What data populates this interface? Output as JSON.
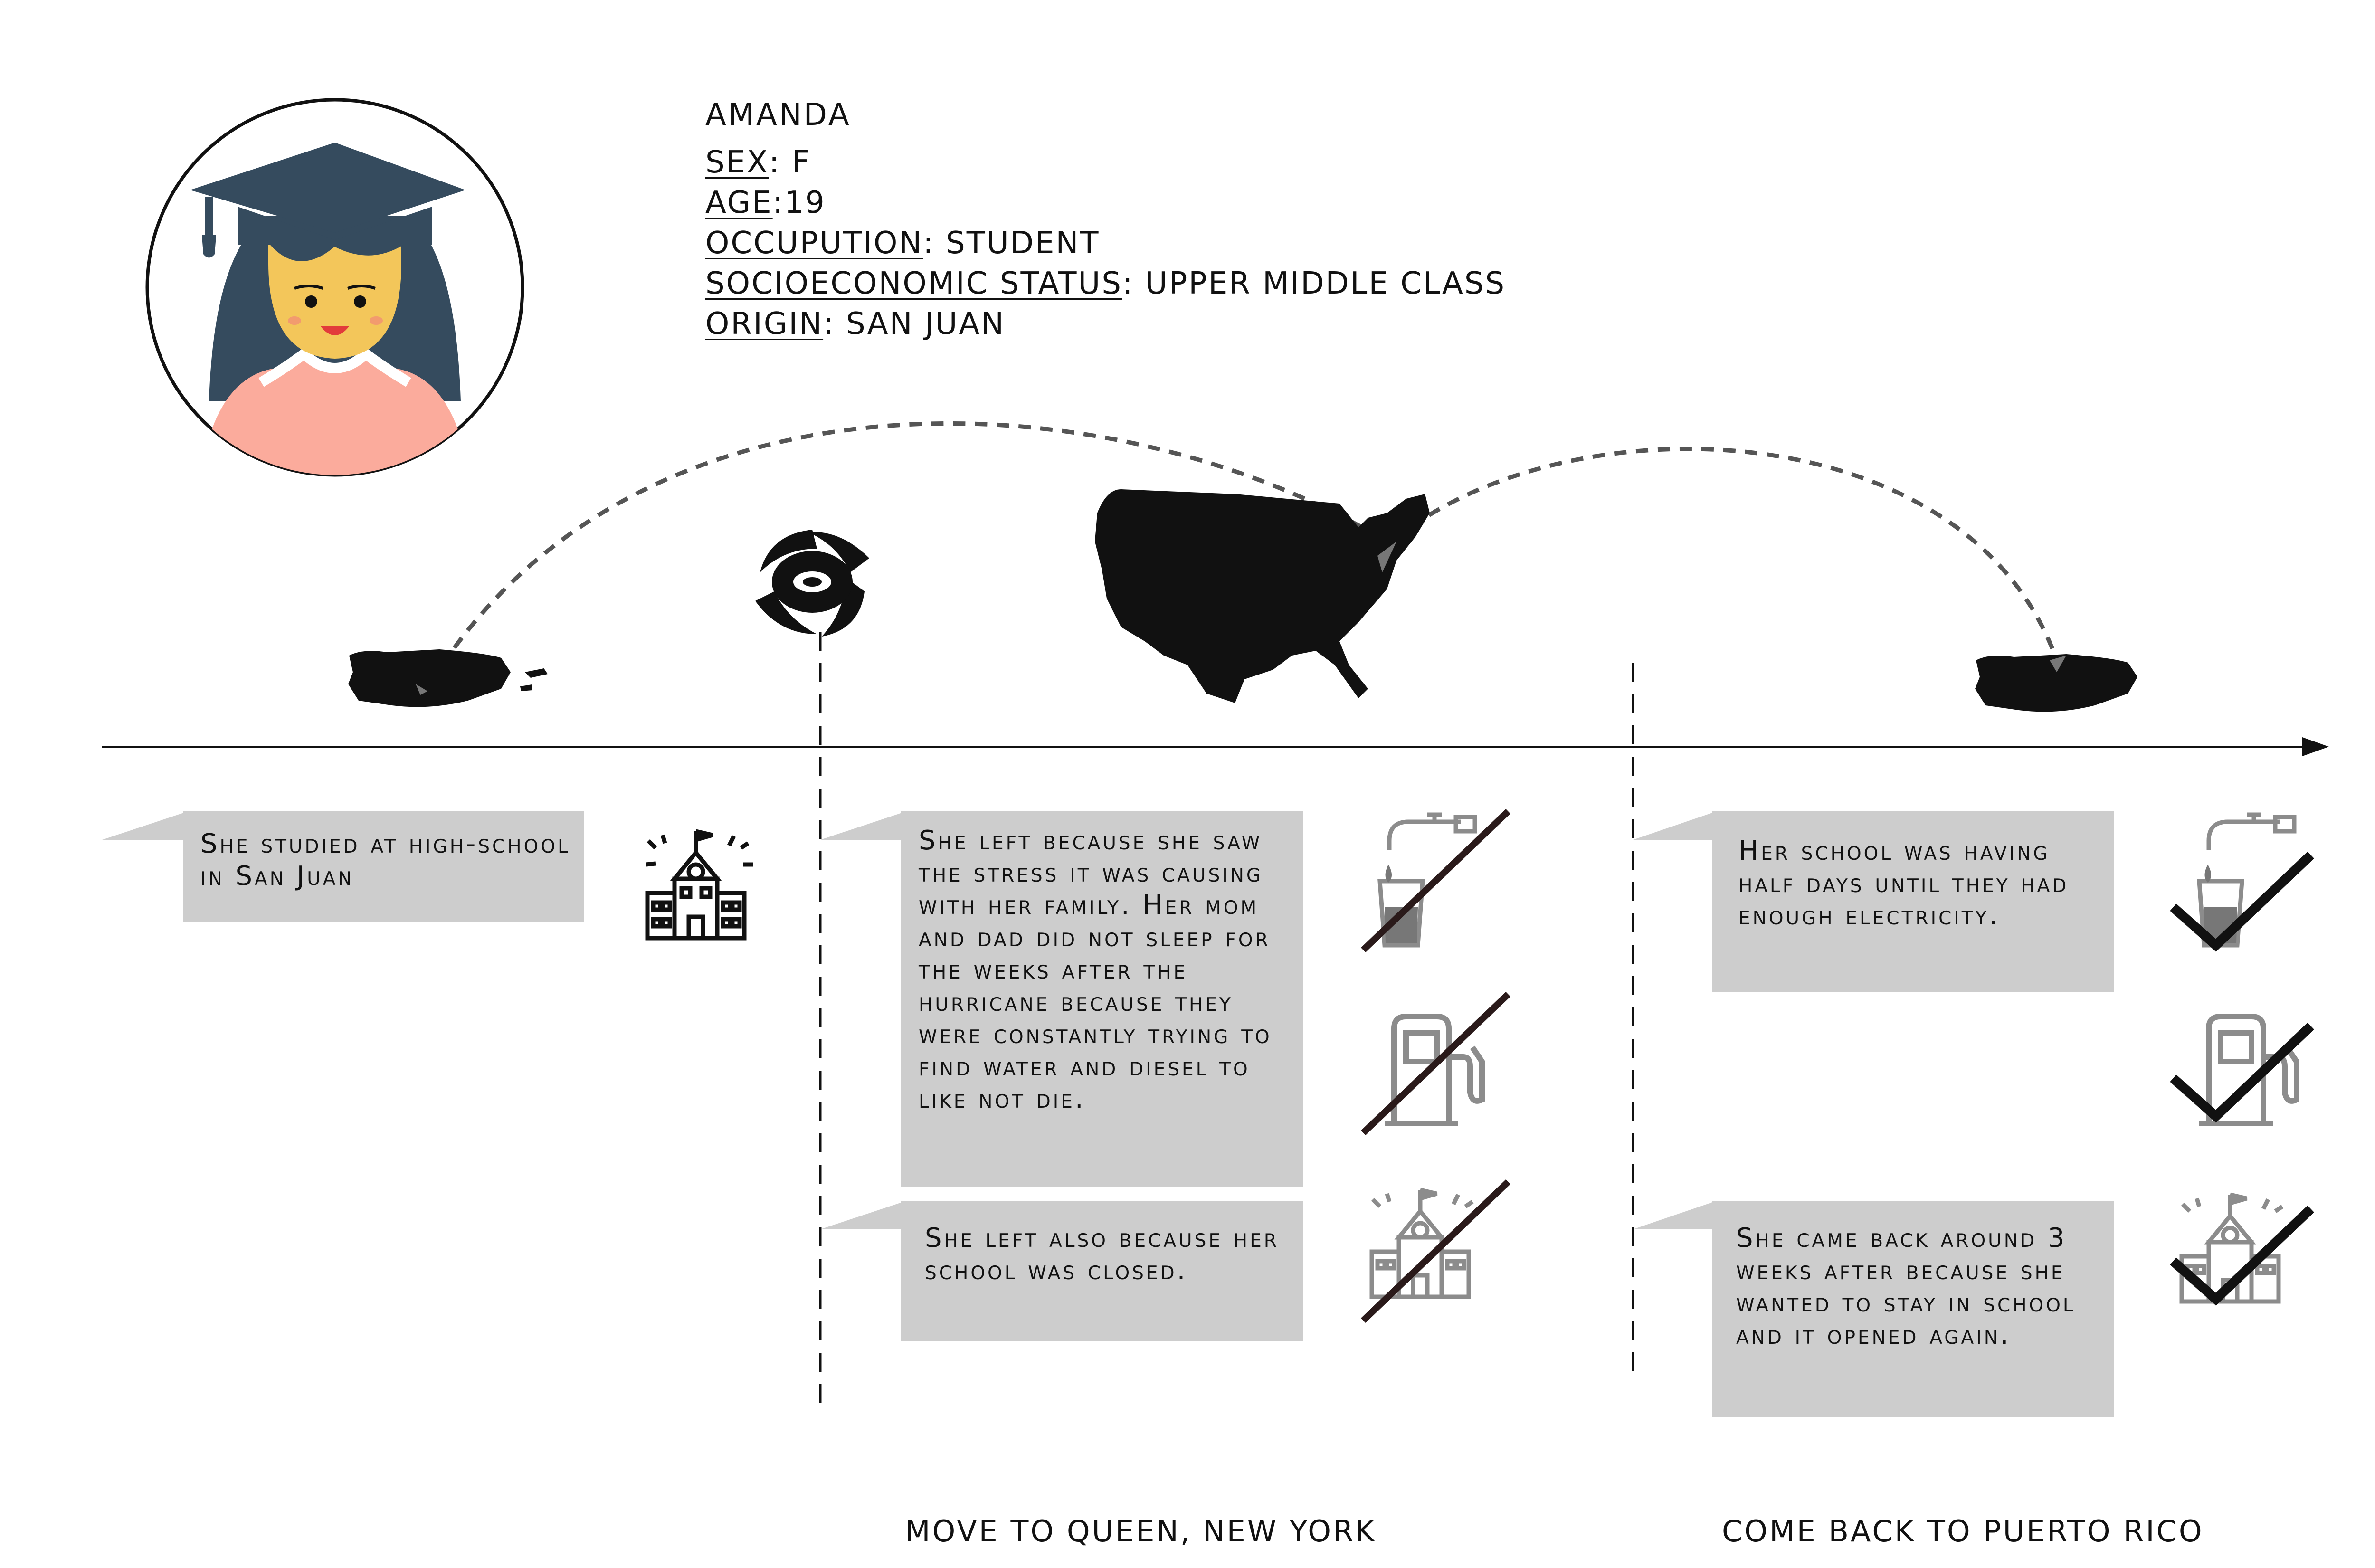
{
  "profile": {
    "name": "AMANDA",
    "fields": [
      {
        "key": "SEX",
        "sep": ": ",
        "value": "F"
      },
      {
        "key": "AGE",
        "sep": ":",
        "value": "19"
      },
      {
        "key": "OCCUPUTION",
        "sep": ": ",
        "value": "STUDENT"
      },
      {
        "key": "SOCIOECONOMIC STATUS",
        "sep": ": ",
        "value": "UPPER MIDDLE CLASS"
      },
      {
        "key": "ORIGIN",
        "sep": ": ",
        "value": "SAN JUAN"
      }
    ]
  },
  "notes": {
    "studied": "She studied at high-school in San Juan",
    "left_reason": "She left because she saw the stress it was causing with her family. Her mom and dad did not sleep for the weeks after the hurricane because they were constantly trying to find water and diesel to like not die.",
    "left_school": "She left also because her school was closed.",
    "half_days": "Her school was having half days until they had enough electricity.",
    "came_back": "She came back around 3 weeks after because she wanted to stay in school and it opened again."
  },
  "captions": {
    "move": "MOVE TO QUEEN, NEW YORK",
    "back": "COME BACK TO PUERTO RICO"
  },
  "icons": {
    "avatar": "graduate-avatar-icon",
    "hurricane": "hurricane-icon",
    "usa": "usa-map-icon",
    "puerto_rico": "puerto-rico-map-icon",
    "school": "school-icon",
    "water": "water-tap-icon",
    "fuel": "fuel-pump-icon",
    "unavailable": "strike-through-icon",
    "available": "check-mark-icon"
  },
  "colors": {
    "cap": "#354b5e",
    "skin": "#f3c65a",
    "shirt": "#fbab9c",
    "bubble": "#cdcdcd",
    "ink": "#111111",
    "icon_gray": "#8c8c8c"
  }
}
